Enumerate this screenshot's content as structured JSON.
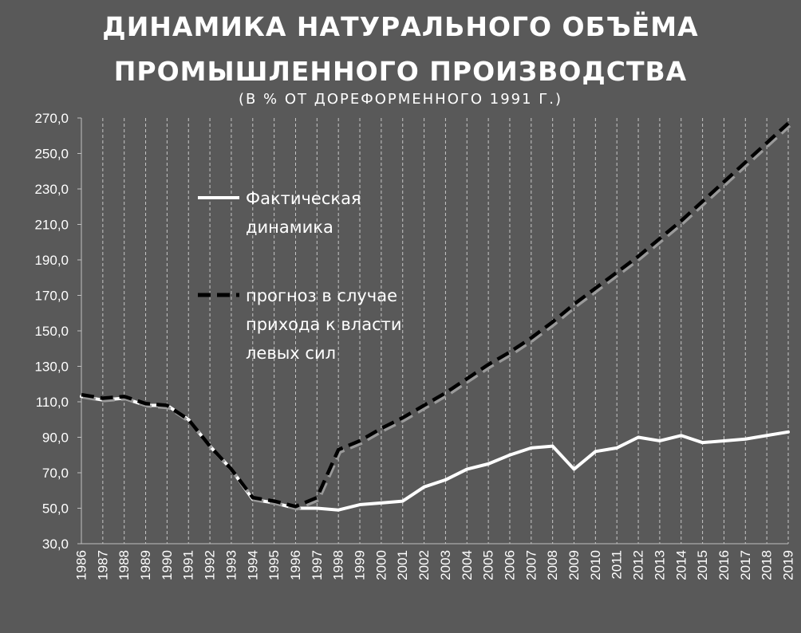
{
  "chart_data": {
    "type": "line",
    "title": "ДИНАМИКА НАТУРАЛЬНОГО ОБЪЁМА ПРОМЫШЛЕННОГО ПРОИЗВОДСТВА",
    "title_lines": [
      "ДИНАМИКА НАТУРАЛЬНОГО ОБЪЁМА",
      "ПРОМЫШЛЕННОГО ПРОИЗВОДСТВА"
    ],
    "subtitle": "(В % ОТ ДОРЕФОРМЕННОГО 1991 Г.)",
    "xlabel": "",
    "ylabel": "",
    "ylim": [
      30,
      270
    ],
    "yticks": [
      "30,0",
      "50,0",
      "70,0",
      "90,0",
      "110,0",
      "130,0",
      "150,0",
      "170,0",
      "190,0",
      "210,0",
      "230,0",
      "250,0",
      "270,0"
    ],
    "x": [
      "1986",
      "1987",
      "1988",
      "1989",
      "1990",
      "1991",
      "1992",
      "1993",
      "1994",
      "1995",
      "1996",
      "1997",
      "1998",
      "1999",
      "2000",
      "2001",
      "2002",
      "2003",
      "2004",
      "2005",
      "2006",
      "2007",
      "2008",
      "2009",
      "2010",
      "2011",
      "2012",
      "2013",
      "2014",
      "2015",
      "2016",
      "2017",
      "2018",
      "2019"
    ],
    "grid": "vertical dashed",
    "legend_position": "upper-left",
    "series": [
      {
        "name": "Фактическая динамика",
        "legend_lines": [
          "Фактическая",
          "динамика"
        ],
        "style": "solid",
        "color": "#ffffff",
        "values": [
          113,
          111,
          112,
          108,
          108,
          100,
          85,
          72,
          55,
          53,
          50,
          50,
          49,
          52,
          53,
          54,
          62,
          66,
          72,
          75,
          80,
          84,
          85,
          72,
          82,
          84,
          90,
          88,
          91,
          87,
          88,
          89,
          91,
          93
        ]
      },
      {
        "name": "прогноз в случае прихода к власти левых сил",
        "legend_lines": [
          "прогноз в случае",
          "прихода к власти",
          "левых сил"
        ],
        "style": "dashed",
        "color": "#000000",
        "values": [
          114,
          112,
          113,
          109,
          108,
          100,
          85,
          72,
          56,
          54,
          51,
          56,
          83,
          88,
          95,
          101,
          108,
          115,
          123,
          131,
          138,
          146,
          155,
          165,
          174,
          183,
          192,
          202,
          212,
          223,
          234,
          245,
          256,
          267
        ]
      }
    ]
  }
}
